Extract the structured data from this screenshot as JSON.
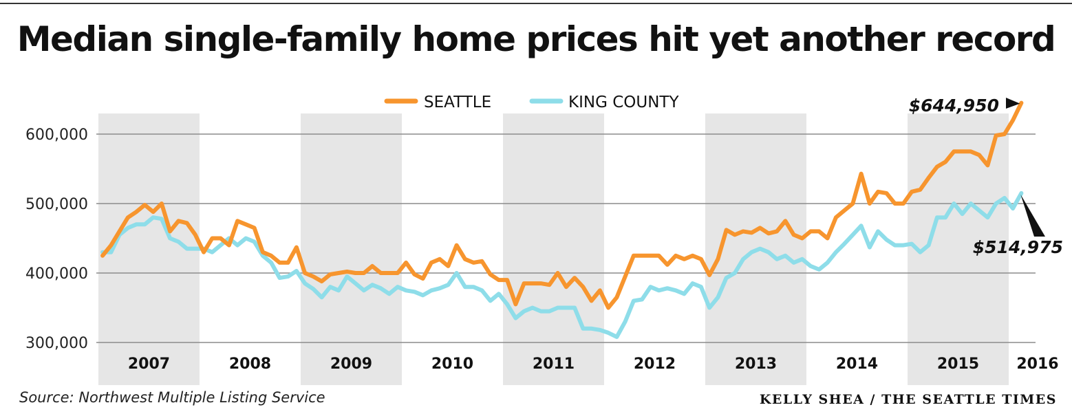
{
  "chart_data": {
    "type": "line",
    "title": "Median single-family home prices hit yet another record",
    "source": "Source: Northwest Multiple Listing Service",
    "credit": "KELLY SHEA / THE SEATTLE TIMES",
    "x_start_year": 2007,
    "year_labels": [
      "2007",
      "2008",
      "2009",
      "2010",
      "2011",
      "2012",
      "2013",
      "2014",
      "2015",
      "2016"
    ],
    "yticks": [
      300000,
      400000,
      500000,
      600000
    ],
    "ytick_labels": [
      "300,000",
      "400,000",
      "500,000",
      "600,000"
    ],
    "ylim": [
      290000,
      650000
    ],
    "grid": true,
    "shaded_years": [
      "2007",
      "2009",
      "2011",
      "2013",
      "2015"
    ],
    "legend_position": "top-center",
    "series": [
      {
        "name": "SEATTLE",
        "color": "#f7952e",
        "values": [
          425000,
          440000,
          460000,
          480000,
          488000,
          498000,
          488000,
          500000,
          460000,
          475000,
          472000,
          455000,
          430000,
          450000,
          450000,
          440000,
          475000,
          470000,
          465000,
          430000,
          425000,
          415000,
          415000,
          437000,
          400000,
          395000,
          388000,
          398000,
          400000,
          402000,
          400000,
          400000,
          410000,
          400000,
          400000,
          400000,
          415000,
          398000,
          392000,
          415000,
          420000,
          410000,
          440000,
          420000,
          415000,
          417000,
          398000,
          390000,
          390000,
          355000,
          385000,
          385000,
          385000,
          383000,
          400000,
          380000,
          393000,
          380000,
          360000,
          375000,
          350000,
          365000,
          395000,
          425000,
          425000,
          425000,
          425000,
          412000,
          425000,
          420000,
          425000,
          420000,
          397000,
          420000,
          462000,
          455000,
          460000,
          458000,
          465000,
          457000,
          460000,
          475000,
          455000,
          450000,
          460000,
          460000,
          450000,
          480000,
          490000,
          500000,
          543000,
          500000,
          517000,
          515000,
          500000,
          500000,
          517000,
          520000,
          537000,
          553000,
          560000,
          575000,
          575000,
          575000,
          570000,
          555000,
          598000,
          600000,
          620000,
          644950
        ],
        "annotation": "$644,950"
      },
      {
        "name": "KING COUNTY",
        "color": "#8edde9",
        "values": [
          430000,
          430000,
          455000,
          465000,
          470000,
          470000,
          480000,
          478000,
          450000,
          445000,
          435000,
          435000,
          435000,
          430000,
          440000,
          450000,
          440000,
          450000,
          445000,
          425000,
          415000,
          393000,
          395000,
          403000,
          385000,
          377000,
          365000,
          380000,
          375000,
          395000,
          385000,
          375000,
          383000,
          378000,
          370000,
          380000,
          375000,
          373000,
          368000,
          375000,
          378000,
          383000,
          400000,
          380000,
          380000,
          375000,
          360000,
          370000,
          355000,
          335000,
          345000,
          350000,
          345000,
          345000,
          350000,
          350000,
          350000,
          320000,
          320000,
          318000,
          314000,
          308000,
          330000,
          360000,
          362000,
          380000,
          375000,
          378000,
          375000,
          370000,
          385000,
          380000,
          350000,
          365000,
          393000,
          400000,
          420000,
          430000,
          435000,
          430000,
          420000,
          425000,
          415000,
          420000,
          410000,
          405000,
          415000,
          430000,
          442000,
          455000,
          468000,
          437000,
          460000,
          448000,
          440000,
          440000,
          442000,
          430000,
          440000,
          480000,
          480000,
          500000,
          485000,
          500000,
          490000,
          480000,
          500000,
          508000,
          493000,
          514975
        ],
        "annotation": "$514,975"
      }
    ]
  }
}
